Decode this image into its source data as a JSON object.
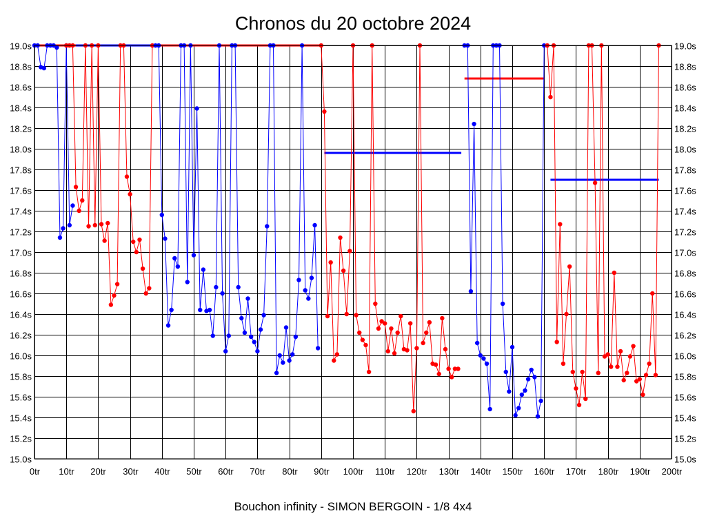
{
  "chart_data": {
    "type": "line",
    "title": "Chronos du 20 octobre 2024",
    "caption": "Bouchon infinity - SIMON BERGOIN - 1/8 4x4",
    "xlabel": "",
    "ylabel": "",
    "xlim": [
      0,
      200
    ],
    "ylim": [
      15.0,
      19.0
    ],
    "grid": true,
    "x_ticks": [
      0,
      10,
      20,
      30,
      40,
      50,
      60,
      70,
      80,
      90,
      100,
      110,
      120,
      130,
      140,
      150,
      160,
      170,
      180,
      190,
      200
    ],
    "x_tick_labels": [
      "0tr",
      "10tr",
      "20tr",
      "30tr",
      "40tr",
      "50tr",
      "60tr",
      "70tr",
      "80tr",
      "90tr",
      "100tr",
      "110tr",
      "120tr",
      "130tr",
      "140tr",
      "150tr",
      "160tr",
      "170tr",
      "180tr",
      "190tr",
      "200tr"
    ],
    "y_ticks": [
      15.0,
      15.2,
      15.4,
      15.6,
      15.8,
      16.0,
      16.2,
      16.4,
      16.6,
      16.8,
      17.0,
      17.2,
      17.4,
      17.6,
      17.8,
      18.0,
      18.2,
      18.4,
      18.6,
      18.8,
      19.0
    ],
    "y_tick_labels": [
      "15.0s",
      "15.2s",
      "15.4s",
      "15.6s",
      "15.8s",
      "16.0s",
      "16.2s",
      "16.4s",
      "16.6s",
      "16.8s",
      "17.0s",
      "17.2s",
      "17.4s",
      "17.6s",
      "17.8s",
      "18.0s",
      "18.2s",
      "18.4s",
      "18.6s",
      "18.8s",
      "19.0s"
    ],
    "series": [
      {
        "name": "Segment 1",
        "color": "#0000ff",
        "x": [
          0,
          1,
          2,
          3,
          4,
          5,
          6,
          7,
          8,
          9,
          10,
          11,
          12
        ],
        "values": [
          19.0,
          19.0,
          18.79,
          18.78,
          19.0,
          19.0,
          19.0,
          18.98,
          17.14,
          17.23,
          19.0,
          17.26,
          17.45
        ]
      },
      {
        "name": "Segment 2",
        "color": "#ff0000",
        "x": [
          10,
          11,
          12,
          13,
          14,
          15,
          16,
          17,
          18,
          19,
          20,
          21,
          22,
          23,
          24,
          25,
          26,
          27,
          28,
          29,
          30,
          31,
          32,
          33,
          34,
          35,
          36,
          37
        ],
        "values": [
          19.0,
          19.0,
          19.0,
          17.63,
          17.4,
          17.5,
          19.0,
          17.25,
          19.0,
          17.26,
          19.0,
          17.27,
          17.11,
          17.28,
          16.49,
          16.58,
          16.69,
          19.0,
          19.0,
          17.73,
          17.56,
          17.1,
          17.0,
          17.12,
          16.84,
          16.6,
          16.65,
          19.0
        ]
      },
      {
        "name": "Segment 3",
        "color": "#0000ff",
        "x": [
          38,
          39,
          40,
          41,
          42,
          43,
          44,
          45,
          46,
          47,
          48,
          49,
          50,
          51,
          52,
          53,
          54,
          55,
          56,
          57,
          58,
          59,
          60,
          61,
          62,
          63,
          64,
          65,
          66,
          67,
          68,
          69,
          70,
          71,
          72,
          73,
          74,
          75,
          76,
          77,
          78,
          79,
          80,
          81,
          82,
          83,
          84,
          85,
          86,
          87,
          88,
          89
        ],
        "values": [
          19.0,
          19.0,
          17.36,
          17.13,
          16.29,
          16.44,
          16.94,
          16.86,
          19.0,
          19.0,
          16.71,
          19.0,
          16.97,
          18.39,
          16.44,
          16.83,
          16.43,
          16.44,
          16.19,
          16.66,
          19.0,
          16.6,
          16.04,
          16.19,
          19.0,
          19.0,
          16.66,
          16.36,
          16.22,
          16.55,
          16.18,
          16.13,
          16.04,
          16.25,
          16.39,
          17.25,
          19.0,
          19.0,
          15.83,
          16.0,
          15.93,
          16.27,
          15.95,
          16.01,
          16.18,
          16.73,
          19.0,
          16.63,
          16.55,
          16.75,
          17.26,
          16.07
        ]
      },
      {
        "name": "Segment 4",
        "color": "#ff0000",
        "x": [
          90,
          91,
          92,
          93,
          94,
          95,
          96,
          97,
          98,
          99,
          100,
          101,
          102,
          103,
          104,
          105,
          106,
          107,
          108,
          109,
          110,
          111,
          112,
          113,
          114,
          115,
          116,
          117,
          118,
          119,
          120,
          121,
          122,
          123,
          124,
          125,
          126,
          127,
          128,
          129,
          130,
          131,
          132,
          133
        ],
        "values": [
          19.0,
          18.36,
          16.38,
          16.9,
          15.95,
          16.01,
          17.14,
          16.82,
          16.4,
          17.01,
          19.0,
          16.39,
          16.22,
          16.15,
          16.1,
          15.84,
          19.0,
          16.5,
          16.26,
          16.33,
          16.31,
          16.04,
          16.26,
          16.02,
          16.22,
          16.38,
          16.06,
          16.05,
          16.31,
          15.46,
          16.07,
          19.0,
          16.12,
          16.22,
          16.32,
          15.92,
          15.91,
          15.82,
          16.36,
          16.06,
          15.87,
          15.79,
          15.87,
          15.87
        ]
      },
      {
        "name": "Segment 5",
        "color": "#0000ff",
        "x": [
          135,
          136,
          137,
          138,
          139,
          140,
          141,
          142,
          143,
          144,
          145,
          146,
          147,
          148,
          149,
          150,
          151,
          152,
          153,
          154,
          155,
          156,
          157,
          158,
          159,
          160
        ],
        "values": [
          19.0,
          19.0,
          16.62,
          18.24,
          16.12,
          16.0,
          15.97,
          15.92,
          15.48,
          19.0,
          19.0,
          19.0,
          16.5,
          15.84,
          15.65,
          16.08,
          15.42,
          15.49,
          15.62,
          15.66,
          15.77,
          15.86,
          15.79,
          15.41,
          15.56,
          19.0
        ]
      },
      {
        "name": "Segment 6",
        "color": "#ff0000",
        "x": [
          161,
          162,
          163,
          164,
          165,
          166,
          167,
          168,
          169,
          170,
          171,
          172,
          173,
          174,
          175,
          176,
          177,
          178,
          179,
          180,
          181,
          182,
          183,
          184,
          185,
          186,
          187,
          188,
          189,
          190,
          191,
          192,
          193,
          194,
          195,
          196
        ],
        "values": [
          19.0,
          18.5,
          19.0,
          16.13,
          17.27,
          15.92,
          16.4,
          16.86,
          15.84,
          15.68,
          15.52,
          15.84,
          15.58,
          19.0,
          19.0,
          17.67,
          15.83,
          19.0,
          15.99,
          16.01,
          15.89,
          16.8,
          15.89,
          16.04,
          15.76,
          15.83,
          15.99,
          16.09,
          15.75,
          15.77,
          15.62,
          15.81,
          15.92,
          16.6,
          15.81,
          19.0
        ]
      }
    ],
    "average_lines": [
      {
        "color": "#ff0000",
        "x": [
          1,
          90
        ],
        "value": 19.0
      },
      {
        "color": "#0000ff",
        "x": [
          13,
          38
        ],
        "value": 19.0
      },
      {
        "color": "#0000ff",
        "x": [
          91,
          134
        ],
        "value": 17.96
      },
      {
        "color": "#ff0000",
        "x": [
          135,
          160
        ],
        "value": 18.68
      },
      {
        "color": "#0000ff",
        "x": [
          162,
          196
        ],
        "value": 17.7
      }
    ]
  }
}
